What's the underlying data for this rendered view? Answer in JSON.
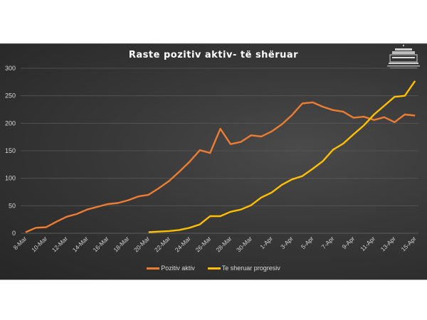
{
  "chart_data": {
    "type": "line",
    "title": "Raste pozitiv aktiv- të shëruar",
    "xlabel": "",
    "ylabel": "",
    "ylim": [
      0,
      300
    ],
    "yticks": [
      0,
      50,
      100,
      150,
      200,
      250,
      300
    ],
    "grid": true,
    "legend_position": "bottom",
    "x": [
      "8-Mar",
      "9-Mar",
      "10-Mar",
      "11-Mar",
      "12-Mar",
      "13-Mar",
      "14-Mar",
      "15-Mar",
      "16-Mar",
      "17-Mar",
      "18-Mar",
      "19-Mar",
      "20-Mar",
      "21-Mar",
      "22-Mar",
      "23-Mar",
      "24-Mar",
      "25-Mar",
      "26-Mar",
      "27-Mar",
      "28-Mar",
      "29-Mar",
      "30-Mar",
      "31-Mar",
      "1-Apr",
      "2-Apr",
      "3-Apr",
      "4-Apr",
      "5-Apr",
      "6-Apr",
      "7-Apr",
      "8-Apr",
      "9-Apr",
      "10-Apr",
      "11-Apr",
      "12-Apr",
      "13-Apr",
      "14-Apr",
      "15-Apr"
    ],
    "xtick_labels": [
      "8-Mar",
      "10-Mar",
      "12-Mar",
      "14-Mar",
      "16-Mar",
      "18-Mar",
      "20-Mar",
      "22-Mar",
      "24-Mar",
      "26-Mar",
      "28-Mar",
      "30-Mar",
      "1-Apr",
      "3-Apr",
      "5-Apr",
      "7-Apr",
      "9-Apr",
      "11-Apr",
      "13-Apr",
      "15-Apr"
    ],
    "series": [
      {
        "name": "Pozitiv aktiv",
        "color": "#ED7D31",
        "values": [
          2,
          10,
          11,
          21,
          30,
          35,
          43,
          48,
          53,
          55,
          60,
          67,
          70,
          82,
          95,
          112,
          130,
          151,
          146,
          190,
          162,
          166,
          178,
          176,
          185,
          198,
          215,
          236,
          238,
          230,
          224,
          221,
          210,
          212,
          206,
          211,
          202,
          216,
          214
        ]
      },
      {
        "name": "Te sheruar progresiv",
        "color": "#FFC000",
        "values": [
          null,
          null,
          null,
          null,
          null,
          null,
          null,
          null,
          null,
          null,
          null,
          null,
          2,
          3,
          4,
          6,
          10,
          16,
          31,
          31,
          39,
          43,
          51,
          65,
          74,
          88,
          98,
          104,
          117,
          131,
          152,
          163,
          180,
          196,
          216,
          232,
          248,
          250,
          277
        ]
      }
    ]
  },
  "logo": {
    "icon": "government-building-logo-icon"
  }
}
